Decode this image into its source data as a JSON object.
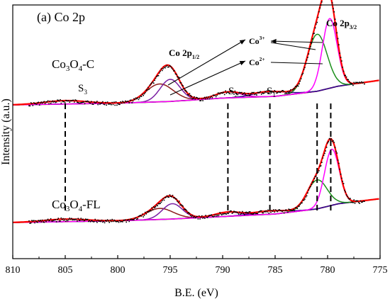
{
  "chart_data": {
    "type": "line",
    "panel_label": "(a) Co 2p",
    "xlabel": "B.E. (eV)",
    "ylabel": "Intensity (a.u.)",
    "x_reversed": true,
    "xlim": [
      810,
      775
    ],
    "x_ticks": [
      "810",
      "805",
      "800",
      "795",
      "790",
      "785",
      "780",
      "775"
    ],
    "y_ticks_shown": false,
    "samples": [
      {
        "name": "Co3O4-C",
        "name_main": "Co",
        "name_sub1": "3",
        "name_mid": "O",
        "name_sub2": "4",
        "name_tail": "-C",
        "baseline": [
          [
            810,
            0.0
          ],
          [
            800,
            0.02
          ],
          [
            795,
            0.04
          ],
          [
            790,
            0.08
          ],
          [
            785,
            0.1
          ],
          [
            781,
            0.16
          ],
          [
            779,
            0.22
          ],
          [
            775,
            0.29
          ]
        ],
        "components": [
          {
            "color": "#8b1a1a",
            "label": "Co3+ 2p1/2",
            "center": 796.0,
            "amp": 0.21,
            "sigma": 1.3
          },
          {
            "color": "#7a1fa2",
            "label": "Co2+ 2p1/2",
            "center": 795.0,
            "amp": 0.26,
            "sigma": 0.95
          },
          {
            "color": "#cc00cc",
            "label": "S2",
            "center": 789.5,
            "amp": 0.07,
            "sigma": 1.2
          },
          {
            "color": "#2e0a8a",
            "label": "S1",
            "center": 785.5,
            "amp": 0.06,
            "sigma": 1.5
          },
          {
            "color": "#1a8f1a",
            "label": "Co2+ 2p3/2",
            "center": 781.0,
            "amp": 0.67,
            "sigma": 0.95
          },
          {
            "color": "#ff00ff",
            "label": "Co3+ 2p3/2",
            "center": 779.8,
            "amp": 0.82,
            "sigma": 0.7
          }
        ],
        "satellite_S3": {
          "center": 805.0,
          "amp": 0.04,
          "sigma": 2.0
        }
      },
      {
        "name": "Co3O4-FL",
        "name_main": "Co",
        "name_sub1": "3",
        "name_mid": "O",
        "name_sub2": "4",
        "name_tail": "-FL",
        "baseline": [
          [
            810,
            0.0
          ],
          [
            800,
            0.02
          ],
          [
            795,
            0.04
          ],
          [
            790,
            0.07
          ],
          [
            785,
            0.1
          ],
          [
            781,
            0.16
          ],
          [
            779,
            0.22
          ],
          [
            775,
            0.28
          ]
        ],
        "components": [
          {
            "color": "#8b1a1a",
            "label": "Co3+ 2p1/2",
            "center": 796.0,
            "amp": 0.13,
            "sigma": 1.3
          },
          {
            "color": "#7a1fa2",
            "label": "Co2+ 2p1/2",
            "center": 794.8,
            "amp": 0.18,
            "sigma": 0.95
          },
          {
            "color": "#cc00cc",
            "label": "S2",
            "center": 789.5,
            "amp": 0.05,
            "sigma": 1.2
          },
          {
            "color": "#2e0a8a",
            "label": "S1",
            "center": 785.5,
            "amp": 0.04,
            "sigma": 1.5
          },
          {
            "color": "#1a8f1a",
            "label": "Co2+ 2p3/2",
            "center": 781.0,
            "amp": 0.34,
            "sigma": 0.95
          },
          {
            "color": "#ff00ff",
            "label": "Co3+ 2p3/2",
            "center": 779.6,
            "amp": 0.66,
            "sigma": 0.7
          }
        ],
        "satellite_S3": {
          "center": 805.0,
          "amp": 0.03,
          "sigma": 2.0
        }
      }
    ],
    "colors": {
      "envelope": "#ff0000",
      "baseline": "#8b8b1a",
      "raw_data": "#000000"
    },
    "annotations": {
      "co2p12": {
        "main": "Co 2p",
        "sub": "1/2"
      },
      "co2p32": {
        "main": "Co 2p",
        "sub": "3/2"
      },
      "co3plus": {
        "main": "Co",
        "sup": "3+"
      },
      "co2plus": {
        "main": "Co",
        "sup": "2+"
      },
      "s1": {
        "main": "S",
        "sub": "1"
      },
      "s2": {
        "main": "S",
        "sub": "2"
      },
      "s3": {
        "main": "S",
        "sub": "3"
      }
    },
    "dashed_lines_x": [
      805,
      789.5,
      785.5,
      781.0,
      779.7
    ]
  }
}
